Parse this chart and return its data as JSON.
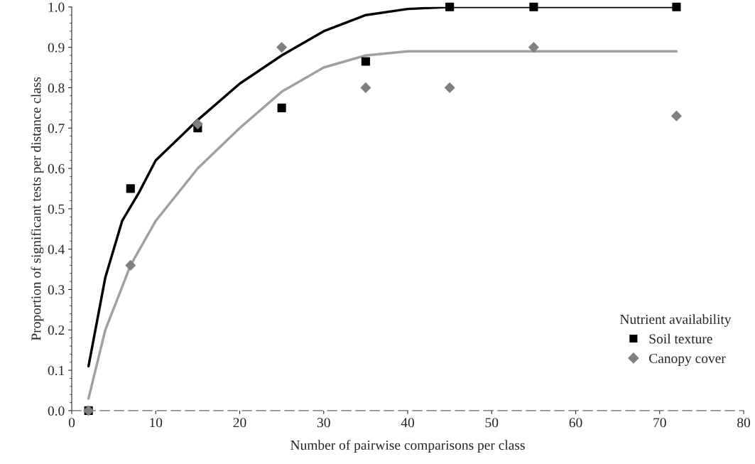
{
  "chart_data": {
    "type": "scatter",
    "xlabel": "Number of pairwise comparisons per class",
    "ylabel": "Proportion of significant tests per distance class",
    "legend_title": "Nutrient availability",
    "legend": "bottom right",
    "grid": false,
    "xlim": [
      0,
      80
    ],
    "xticks": [
      0,
      10,
      20,
      30,
      40,
      50,
      60,
      70,
      80
    ],
    "ylim": [
      0,
      1.0
    ],
    "yticks": [
      {
        "value": 0,
        "label": "0.0"
      },
      0.1,
      0.2,
      0.3,
      0.4,
      0.5,
      0.6,
      0.7,
      0.8,
      0.9,
      {
        "value": 1.0,
        "label": "1.0"
      }
    ],
    "series": [
      {
        "name": "Soil texture",
        "marker": "square",
        "color": "#000000",
        "x": [
          2,
          7,
          15,
          25,
          35,
          45,
          55,
          72
        ],
        "values": [
          0,
          0.55,
          0.7,
          0.75,
          0.865,
          1.0,
          1.0,
          1.0
        ]
      },
      {
        "name": "Canopy cover",
        "marker": "diamond",
        "color": "#808080",
        "x": [
          2,
          7,
          15,
          25,
          35,
          45,
          55,
          72
        ],
        "values": [
          0,
          0.36,
          0.71,
          0.9,
          0.8,
          0.8,
          0.9,
          0.73
        ]
      },
      {
        "type": "line",
        "marker": "none",
        "line_style": "solid",
        "color": "#000000",
        "x": [
          2,
          4,
          6,
          8,
          10,
          15,
          20,
          25,
          30,
          35,
          40,
          45,
          55,
          65,
          72
        ],
        "values": [
          0.11,
          0.33,
          0.47,
          0.54,
          0.62,
          0.72,
          0.81,
          0.88,
          0.94,
          0.98,
          0.995,
          1.0,
          1.0,
          1.0,
          1.0
        ]
      },
      {
        "type": "line",
        "marker": "none",
        "line_style": "solid",
        "color": "#a0a0a0",
        "x": [
          2,
          4,
          7,
          10,
          15,
          20,
          25,
          30,
          35,
          40,
          50,
          60,
          72
        ],
        "values": [
          0.03,
          0.2,
          0.36,
          0.47,
          0.6,
          0.7,
          0.79,
          0.85,
          0.88,
          0.89,
          0.89,
          0.89,
          0.89
        ]
      }
    ]
  }
}
